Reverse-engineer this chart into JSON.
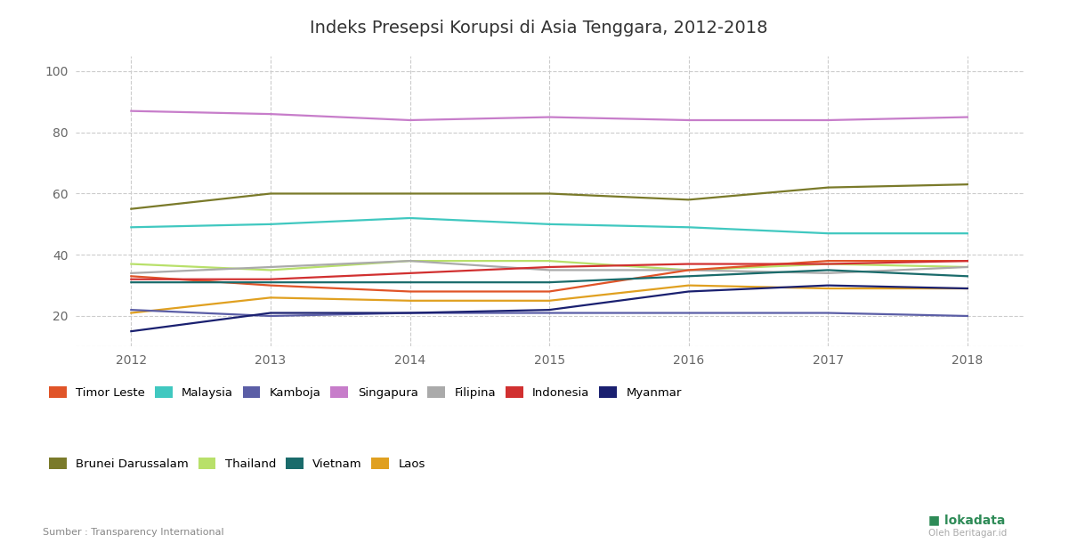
{
  "title": "Indeks Presepsi Korupsi di Asia Tenggara, 2012-2018",
  "years": [
    2012,
    2013,
    2014,
    2015,
    2016,
    2017,
    2018
  ],
  "series": {
    "Singapura": {
      "values": [
        87,
        86,
        84,
        85,
        84,
        84,
        85
      ],
      "color": "#c77dca"
    },
    "Brunei Darussalam": {
      "values": [
        55,
        60,
        60,
        60,
        58,
        62,
        63
      ],
      "color": "#7a7a2a"
    },
    "Malaysia": {
      "values": [
        49,
        50,
        52,
        50,
        49,
        47,
        47
      ],
      "color": "#40c8c0"
    },
    "Thailand": {
      "values": [
        37,
        35,
        38,
        38,
        35,
        37,
        36
      ],
      "color": "#b8e06a"
    },
    "Filipina": {
      "values": [
        34,
        36,
        38,
        35,
        35,
        34,
        36
      ],
      "color": "#aaaaaa"
    },
    "Timor Leste": {
      "values": [
        33,
        30,
        28,
        28,
        35,
        38,
        38
      ],
      "color": "#e05428"
    },
    "Indonesia": {
      "values": [
        32,
        32,
        34,
        36,
        37,
        37,
        38
      ],
      "color": "#d13030"
    },
    "Vietnam": {
      "values": [
        31,
        31,
        31,
        31,
        33,
        35,
        33
      ],
      "color": "#1a6b6b"
    },
    "Laos": {
      "values": [
        21,
        26,
        25,
        25,
        30,
        29,
        29
      ],
      "color": "#e0a020"
    },
    "Kamboja": {
      "values": [
        22,
        20,
        21,
        21,
        21,
        21,
        20
      ],
      "color": "#5b5ea6"
    },
    "Myanmar": {
      "values": [
        15,
        21,
        21,
        22,
        28,
        30,
        29
      ],
      "color": "#1a2070"
    }
  },
  "ylim": [
    10,
    105
  ],
  "yticks": [
    20,
    40,
    60,
    80,
    100
  ],
  "bg_color": "#ffffff",
  "grid_color": "#cccccc",
  "source_text": "Sumber : Transparency International",
  "legend_row1": [
    "Timor Leste",
    "Malaysia",
    "Kamboja",
    "Singapura",
    "Filipina",
    "Indonesia",
    "Myanmar"
  ],
  "legend_row2": [
    "Brunei Darussalam",
    "Thailand",
    "Vietnam",
    "Laos"
  ]
}
